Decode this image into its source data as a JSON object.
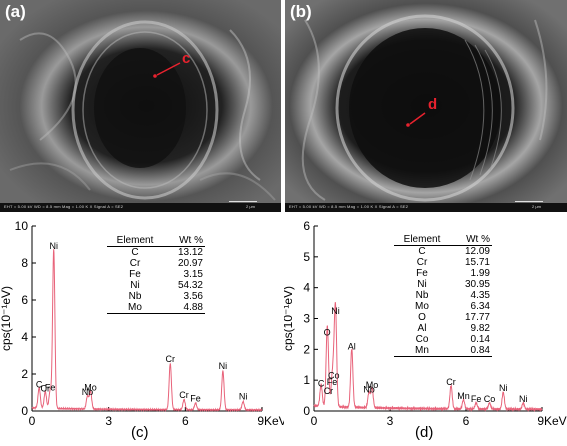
{
  "micrographs": [
    {
      "label": "(a)",
      "point_label": "c",
      "info_text": "EHT = 5.00 kV   WD = 8.5 mm   Mag = 1.00 K X   Signal A = SE2",
      "scale_text": "2 μm"
    },
    {
      "label": "(b)",
      "point_label": "d",
      "info_text": "EHT = 5.00 kV   WD = 8.5 mm   Mag = 1.00 K X   Signal A = SE2",
      "scale_text": "2 μm"
    }
  ],
  "chart_data": [
    {
      "type": "line",
      "panel": "(c)",
      "ylabel": "cps(10⁻¹eV)",
      "xlabel": "KeV",
      "xlim": [
        0,
        9
      ],
      "ylim": [
        0,
        10
      ],
      "x_ticks": [
        0,
        3,
        6,
        9
      ],
      "y_ticks": [
        0,
        2,
        4,
        6,
        8,
        10
      ],
      "x_tick_labels": [
        "0",
        "3",
        "6",
        "9KeV"
      ],
      "peaks": [
        {
          "label": "C",
          "x": 0.28,
          "y": 1.1
        },
        {
          "label": "Cr",
          "x": 0.52,
          "y": 0.9
        },
        {
          "label": "Fe",
          "x": 0.71,
          "y": 0.95
        },
        {
          "label": "Ni",
          "x": 0.85,
          "y": 8.6
        },
        {
          "label": "Nb",
          "x": 2.17,
          "y": 0.7
        },
        {
          "label": "Mo",
          "x": 2.29,
          "y": 0.95
        },
        {
          "label": "Cr",
          "x": 5.41,
          "y": 2.5
        },
        {
          "label": "Cr",
          "x": 5.95,
          "y": 0.55
        },
        {
          "label": "Fe",
          "x": 6.4,
          "y": 0.35
        },
        {
          "label": "Ni",
          "x": 7.47,
          "y": 2.1
        },
        {
          "label": "Ni",
          "x": 8.26,
          "y": 0.45
        }
      ],
      "table": {
        "headers": [
          "Element",
          "Wt %"
        ],
        "rows": [
          [
            "C",
            "13.12"
          ],
          [
            "Cr",
            "20.97"
          ],
          [
            "Fe",
            "3.15"
          ],
          [
            "Ni",
            "54.32"
          ],
          [
            "Nb",
            "3.56"
          ],
          [
            "Mo",
            "4.88"
          ]
        ]
      },
      "color": "#e8637a"
    },
    {
      "type": "line",
      "panel": "(d)",
      "ylabel": "cps(10⁻¹eV)",
      "xlabel": "KeV",
      "xlim": [
        0,
        9
      ],
      "ylim": [
        0,
        6
      ],
      "x_ticks": [
        0,
        3,
        6,
        9
      ],
      "y_ticks": [
        0,
        1,
        2,
        3,
        4,
        5,
        6
      ],
      "x_tick_labels": [
        "0",
        "3",
        "6",
        "9KeV"
      ],
      "peaks": [
        {
          "label": "C",
          "x": 0.28,
          "y": 0.7
        },
        {
          "label": "O",
          "x": 0.52,
          "y": 2.35
        },
        {
          "label": "Cr",
          "x": 0.57,
          "y": 0.45
        },
        {
          "label": "Fe",
          "x": 0.71,
          "y": 0.75
        },
        {
          "label": "Co",
          "x": 0.78,
          "y": 0.95
        },
        {
          "label": "Ni",
          "x": 0.85,
          "y": 3.05
        },
        {
          "label": "Al",
          "x": 1.49,
          "y": 1.9
        },
        {
          "label": "Nb",
          "x": 2.17,
          "y": 0.5
        },
        {
          "label": "Mo",
          "x": 2.29,
          "y": 0.65
        },
        {
          "label": "Cr",
          "x": 5.41,
          "y": 0.75
        },
        {
          "label": "Mn",
          "x": 5.9,
          "y": 0.3
        },
        {
          "label": "Fe",
          "x": 6.4,
          "y": 0.2
        },
        {
          "label": "Co",
          "x": 6.93,
          "y": 0.2
        },
        {
          "label": "Ni",
          "x": 7.47,
          "y": 0.55
        },
        {
          "label": "Ni",
          "x": 8.26,
          "y": 0.2
        }
      ],
      "table": {
        "headers": [
          "Element",
          "Wt %"
        ],
        "rows": [
          [
            "C",
            "12.09"
          ],
          [
            "Cr",
            "15.71"
          ],
          [
            "Fe",
            "1.99"
          ],
          [
            "Ni",
            "30.95"
          ],
          [
            "Nb",
            "4.35"
          ],
          [
            "Mo",
            "6.34"
          ],
          [
            "O",
            "17.77"
          ],
          [
            "Al",
            "9.82"
          ],
          [
            "Co",
            "0.14"
          ],
          [
            "Mn",
            "0.84"
          ]
        ]
      },
      "color": "#e8637a"
    }
  ]
}
